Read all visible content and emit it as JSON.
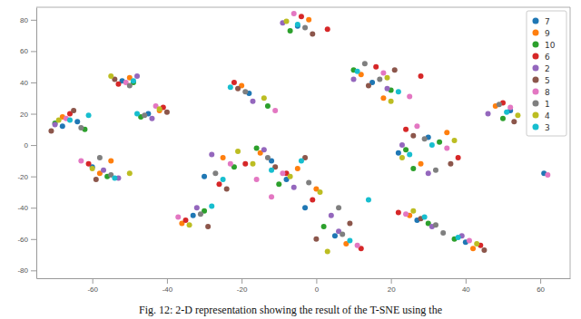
{
  "chart_data": {
    "type": "scatter",
    "title": "Fig. 12: 2-D representation showing the result of the T-SNE using the",
    "xlim": [
      -75,
      68
    ],
    "ylim": [
      -85,
      88
    ],
    "xticks": [
      -60,
      -40,
      -20,
      0,
      20,
      40,
      60
    ],
    "yticks": [
      -80,
      -60,
      -40,
      -20,
      0,
      20,
      40,
      60,
      80
    ],
    "legend": "upper right",
    "marker": "circle",
    "series": [
      {
        "name": "7",
        "color": "#1f77b4",
        "x": [
          -5,
          -64,
          -60,
          -52,
          -45,
          -33,
          -12,
          -8,
          -18,
          15,
          22,
          30,
          52,
          5,
          27,
          40,
          -30,
          -3,
          61,
          -68
        ],
        "values": [
          76,
          15,
          -14,
          41,
          20,
          -45,
          -10,
          -22,
          33,
          40,
          -5,
          5,
          22,
          -58,
          -48,
          -62,
          -20,
          -40,
          -18,
          12
        ]
      },
      {
        "name": "9",
        "color": "#ff7f0e",
        "x": [
          -2,
          -68,
          -58,
          -50,
          -42,
          -36,
          -15,
          -5,
          -20,
          12,
          28,
          35,
          48,
          8,
          25,
          42,
          -25,
          0,
          18,
          -55
        ],
        "values": [
          80,
          18,
          -18,
          43,
          22,
          -50,
          -5,
          -15,
          38,
          45,
          -12,
          8,
          25,
          -63,
          -45,
          -66,
          -8,
          -28,
          30,
          -10
        ]
      },
      {
        "name": "10",
        "color": "#2ca02c",
        "x": [
          -7,
          -62,
          -56,
          -49,
          -47,
          -30,
          -10,
          -16,
          -13,
          20,
          33,
          26,
          50,
          2,
          30,
          37,
          -22,
          10,
          24,
          -70
        ],
        "values": [
          73,
          10,
          -20,
          40,
          18,
          -42,
          -25,
          -2,
          25,
          35,
          2,
          -15,
          17,
          -52,
          -50,
          -60,
          -14,
          48,
          -3,
          14
        ]
      },
      {
        "name": "6",
        "color": "#d62728",
        "x": [
          -4,
          -66,
          -61,
          -53,
          -41,
          -35,
          -8,
          -19,
          -22,
          16,
          24,
          38,
          50,
          12,
          22,
          44,
          -26,
          -1,
          28,
          3
        ],
        "values": [
          82,
          20,
          -12,
          39,
          24,
          -48,
          -18,
          -12,
          40,
          50,
          10,
          -8,
          27,
          -66,
          -43,
          -64,
          -25,
          -35,
          44,
          74
        ]
      },
      {
        "name": "2",
        "color": "#9467bd",
        "x": [
          -9,
          -70,
          -57,
          -48,
          -44,
          -32,
          -14,
          -6,
          -17,
          10,
          30,
          23,
          46,
          6,
          31,
          39,
          -28,
          4,
          19,
          -53
        ],
        "values": [
          78,
          13,
          -16,
          44,
          17,
          -40,
          -3,
          -27,
          28,
          42,
          -18,
          0,
          20,
          -55,
          -52,
          -58,
          -6,
          -45,
          36,
          -21
        ]
      },
      {
        "name": "5",
        "color": "#8c564b",
        "x": [
          -1,
          -65,
          -59,
          -54,
          -40,
          -29,
          -11,
          -3,
          -21,
          14,
          26,
          36,
          53,
          0,
          28,
          45,
          -24,
          9,
          21,
          -71
        ],
        "values": [
          71,
          22,
          -22,
          42,
          21,
          -52,
          -14,
          -8,
          36,
          38,
          6,
          -12,
          15,
          -60,
          -47,
          -67,
          -28,
          -50,
          48,
          9
        ]
      },
      {
        "name": "8",
        "color": "#e377c2",
        "x": [
          -6,
          -67,
          -63,
          -51,
          -43,
          -37,
          -16,
          -9,
          -11,
          18,
          35,
          27,
          52,
          11,
          24,
          41,
          -23,
          -12,
          25,
          62
        ],
        "values": [
          84,
          17,
          -10,
          40,
          25,
          -46,
          -22,
          -18,
          22,
          46,
          -2,
          12,
          24,
          -64,
          -44,
          -61,
          -12,
          -33,
          31,
          -19
        ]
      },
      {
        "name": "1",
        "color": "#7f7f7f",
        "x": [
          -3,
          -63,
          -55,
          -50,
          -46,
          -31,
          -13,
          -2,
          -19,
          13,
          29,
          32,
          49,
          7,
          32,
          34,
          -27,
          6,
          17,
          -58
        ],
        "values": [
          75,
          11,
          -19,
          38,
          19,
          -44,
          -8,
          -24,
          34,
          52,
          4,
          -16,
          26,
          -57,
          -51,
          -56,
          -18,
          -40,
          42,
          -8
        ]
      },
      {
        "name": "4",
        "color": "#bcbd22",
        "x": [
          -8,
          -69,
          -60,
          -55,
          -42,
          -34,
          -17,
          -7,
          -14,
          19,
          23,
          37,
          54,
          3,
          26,
          43,
          -21,
          1,
          20,
          -50
        ],
        "values": [
          79,
          16,
          -15,
          44,
          23,
          -51,
          -12,
          -20,
          30,
          43,
          -8,
          3,
          19,
          -68,
          -42,
          -63,
          -4,
          -30,
          28,
          -18
        ]
      },
      {
        "name": "3",
        "color": "#17becf",
        "x": [
          -5,
          -61,
          -54,
          -49,
          -48,
          -28,
          -12,
          -4,
          -23,
          11,
          31,
          25,
          51,
          9,
          29,
          38,
          -25,
          14,
          22,
          -66
        ],
        "values": [
          77,
          19,
          -21,
          41,
          20,
          -39,
          -16,
          -10,
          37,
          47,
          0,
          -6,
          21,
          -61,
          -46,
          -59,
          -22,
          -35,
          34,
          16
        ]
      }
    ]
  }
}
